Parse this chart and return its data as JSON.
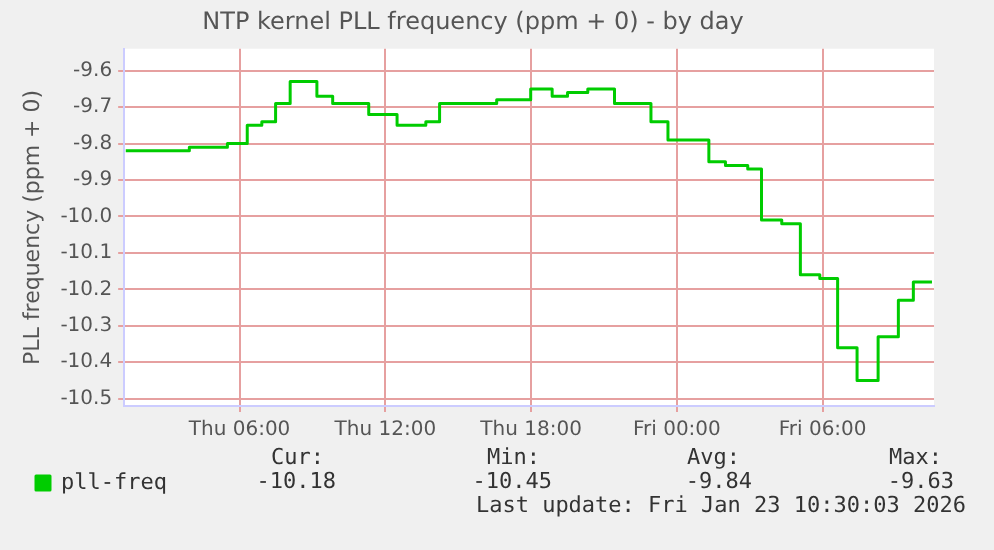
{
  "chart_data": {
    "type": "step",
    "title": "NTP kernel PLL frequency (ppm + 0) - by day",
    "ylabel": "PLL frequency (ppm + 0)",
    "x": [
      "2026-01-22T01:19",
      "2026-01-22T03:56",
      "2026-01-22T05:30",
      "2026-01-22T06:19",
      "2026-01-22T06:55",
      "2026-01-22T07:29",
      "2026-01-22T08:05",
      "2026-01-22T09:11",
      "2026-01-22T09:50",
      "2026-01-22T11:19",
      "2026-01-22T12:29",
      "2026-01-22T13:40",
      "2026-01-22T14:14",
      "2026-01-22T16:35",
      "2026-01-22T17:59",
      "2026-01-22T18:52",
      "2026-01-22T19:30",
      "2026-01-22T20:20",
      "2026-01-22T21:26",
      "2026-01-22T22:56",
      "2026-01-22T23:38",
      "2026-01-23T01:19",
      "2026-01-23T02:00",
      "2026-01-23T02:55",
      "2026-01-23T03:29",
      "2026-01-23T04:19",
      "2026-01-23T05:05",
      "2026-01-23T05:53",
      "2026-01-23T06:37",
      "2026-01-23T07:25",
      "2026-01-23T08:17",
      "2026-01-23T09:07",
      "2026-01-23T09:44",
      "2026-01-23T10:30"
    ],
    "series": [
      {
        "name": "pll-freq",
        "color": "#00cc00",
        "values": [
          -9.82,
          -9.81,
          -9.8,
          -9.75,
          -9.74,
          -9.69,
          -9.63,
          -9.67,
          -9.69,
          -9.72,
          -9.75,
          -9.74,
          -9.69,
          -9.68,
          -9.65,
          -9.67,
          -9.66,
          -9.65,
          -9.69,
          -9.74,
          -9.79,
          -9.85,
          -9.86,
          -9.87,
          -10.01,
          -10.02,
          -10.16,
          -10.17,
          -10.36,
          -10.45,
          -10.33,
          -10.23,
          -10.18,
          -10.18
        ]
      }
    ],
    "xlim": [
      "2026-01-22T01:15",
      "2026-01-23T10:35"
    ],
    "xticks": [
      {
        "value": "2026-01-22T06:00",
        "label": "Thu 06:00"
      },
      {
        "value": "2026-01-22T12:00",
        "label": "Thu 12:00"
      },
      {
        "value": "2026-01-22T18:00",
        "label": "Thu 18:00"
      },
      {
        "value": "2026-01-23T00:00",
        "label": "Fri 00:00"
      },
      {
        "value": "2026-01-23T06:00",
        "label": "Fri 06:00"
      }
    ],
    "ylim": [
      -10.52,
      -9.54
    ],
    "yticks": [
      -10.5,
      -10.4,
      -10.3,
      -10.2,
      -10.1,
      {
        "value": -10,
        "label": "-10.0"
      },
      -9.9,
      -9.8,
      -9.7,
      -9.6
    ],
    "grid": true,
    "legend": "bottom left",
    "marker": "none",
    "line_style": "solid",
    "annotations": [
      "Cur:",
      "-10.18",
      "Min:",
      "-10.45",
      "Avg:",
      "-9.84",
      "Max:",
      "-9.63",
      "Last update: Fri Jan 23 10:30:03 2026"
    ]
  }
}
